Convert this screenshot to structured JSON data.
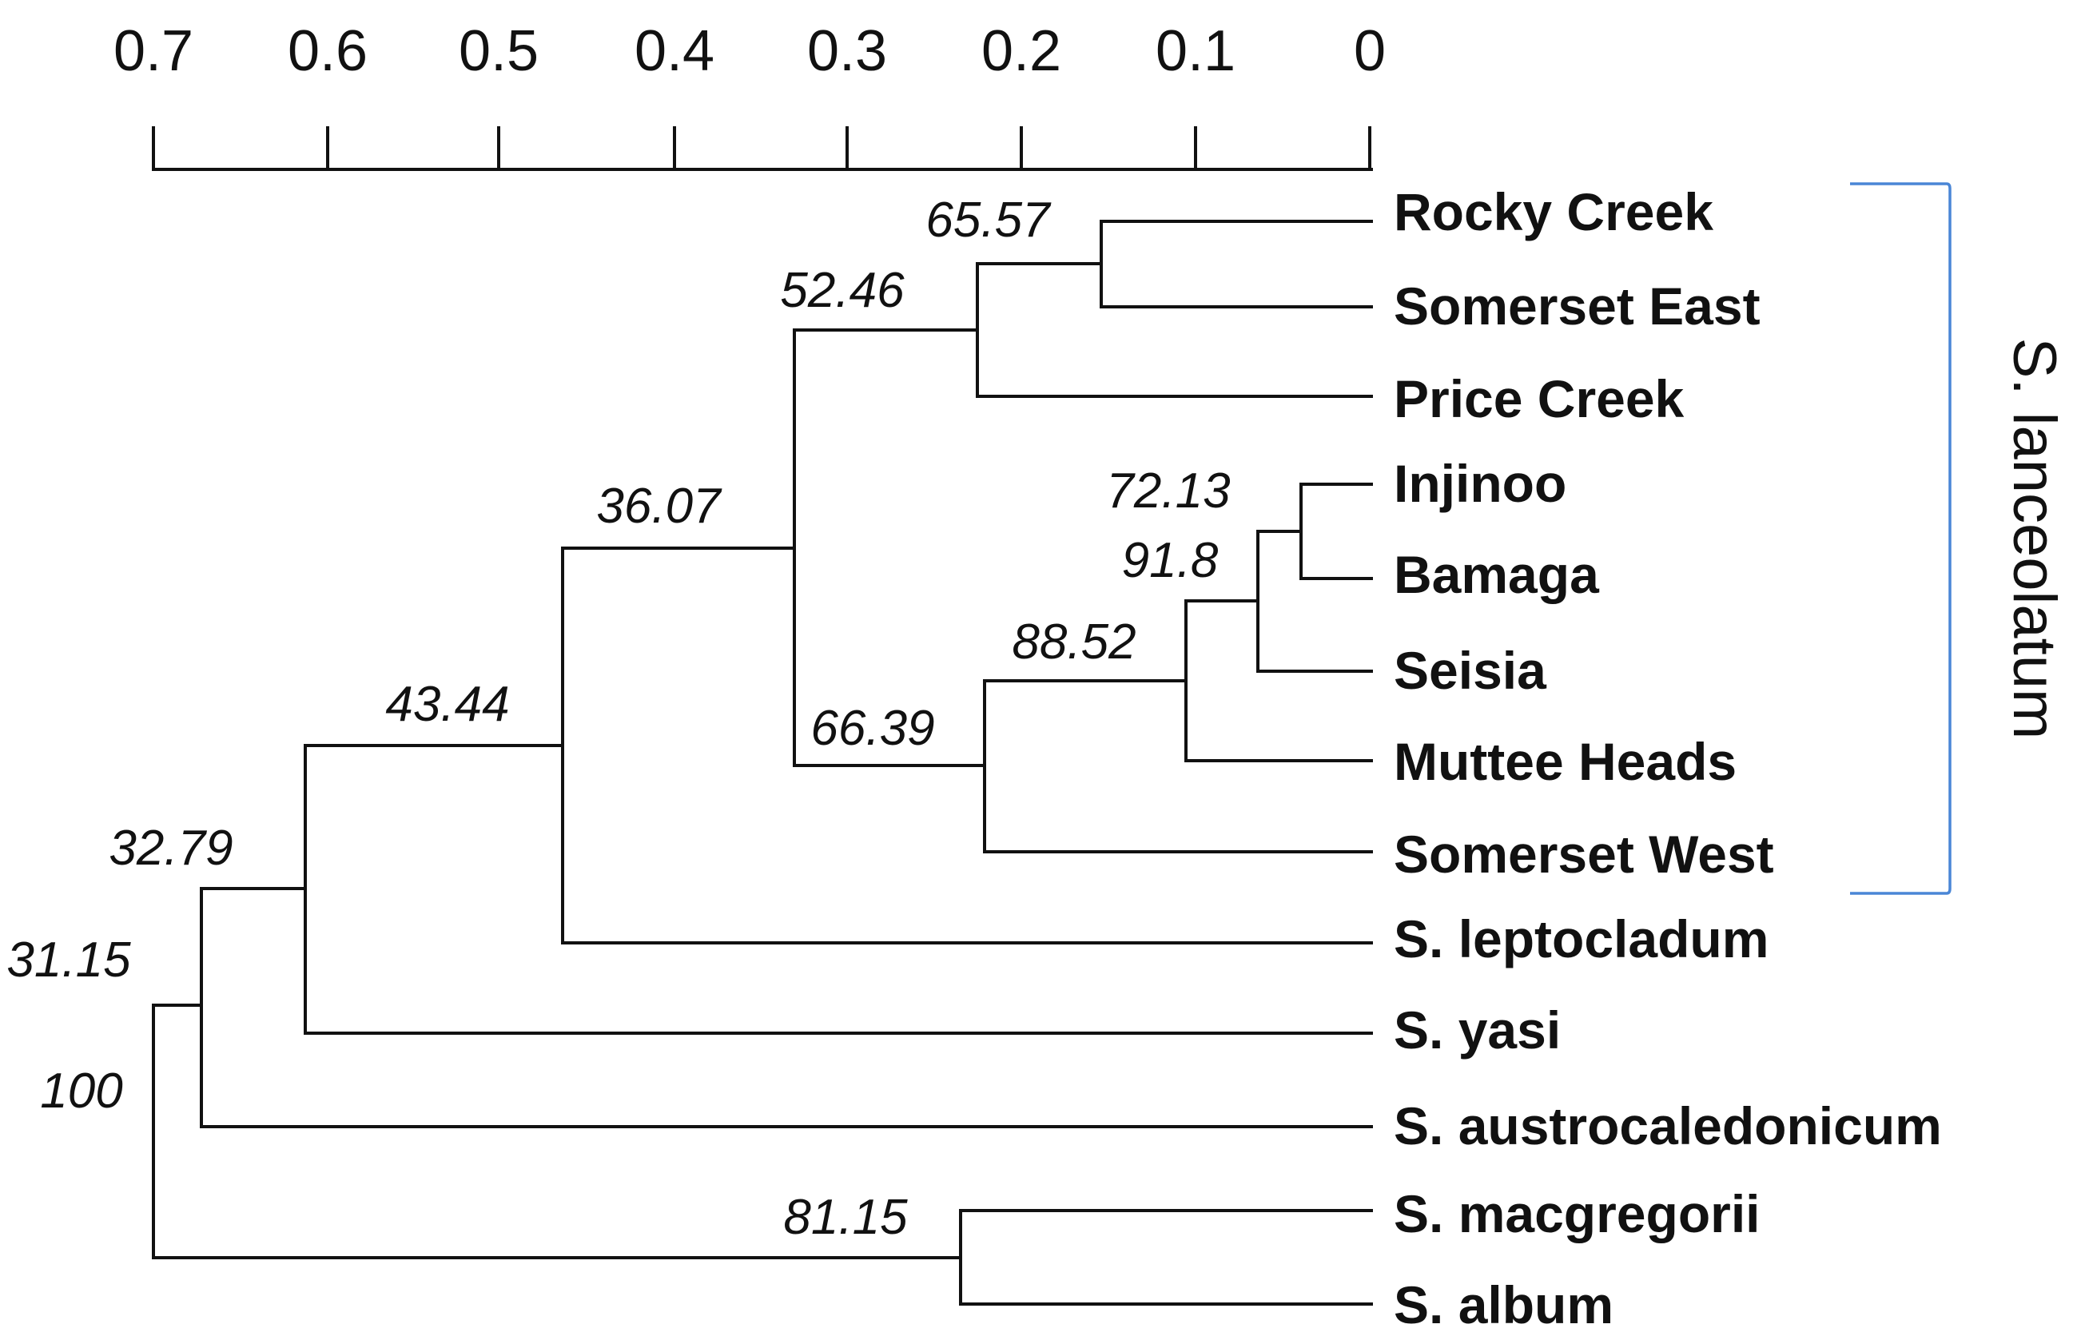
{
  "diagram": {
    "type": "dendrogram",
    "axis": {
      "ticks": [
        "0.7",
        "0.6",
        "0.5",
        "0.4",
        "0.3",
        "0.2",
        "0.1",
        "0"
      ]
    },
    "leaves": [
      "Rocky Creek",
      "Somerset East",
      "Price Creek",
      "Injinoo",
      "Bamaga",
      "Seisia",
      "Muttee Heads",
      "Somerset West",
      "S. leptocladum",
      "S. yasi",
      "S. austrocaledonicum",
      "S. macgregorii",
      "S. album"
    ],
    "support_values": {
      "n_rocky_somerset_east": "65.57",
      "n_price": "52.46",
      "n_injinoo_bamaga": "72.13",
      "n_seisia": "91.8",
      "n_muttee": "88.52",
      "n_somerset_west": "66.39",
      "n_lanceolatum": "36.07",
      "n_leptocladum": "43.44",
      "n_yasi": "32.79",
      "n_austrocaledonicum": "31.15",
      "n_root": "100",
      "n_macgregorii_album": "81.15"
    },
    "clade_label": "S. lanceolatum",
    "colors": {
      "branch": "#111111",
      "bracket": "#4a86d6"
    }
  }
}
